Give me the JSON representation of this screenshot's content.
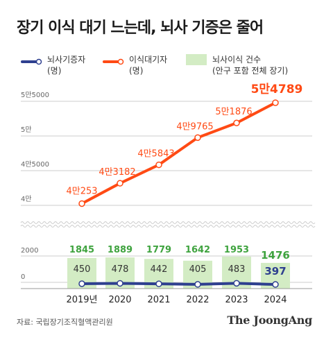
{
  "title": "장기 이식 대기 느는데, 뇌사 기증은 줄어",
  "legend": {
    "donors": "뇌사기증자\n(명)",
    "waiting": "이식대기자\n(명)",
    "transplants": "뇌사이식 건수\n(안구 포함 전체 장기)"
  },
  "source": "자료: 국립장기조직혈액관리원",
  "logo": "The JoongAng",
  "colors": {
    "waiting": "#ff4a14",
    "donors": "#2e3f8f",
    "transplants": "#d3ecc4",
    "transplant_label": "#3fa33f",
    "axis": "#cccccc"
  },
  "chart_data": [
    {
      "type": "line",
      "name": "이식대기자",
      "x": [
        "2019년",
        "2020",
        "2021",
        "2022",
        "2023",
        "2024"
      ],
      "values": [
        40253,
        43182,
        45843,
        49765,
        51876,
        54789
      ],
      "labels": [
        "4만253",
        "4만3182",
        "4만5843",
        "4만9765",
        "5만1876",
        "5만4789"
      ],
      "yticks": [
        40000,
        45000,
        50000,
        55000
      ],
      "ytick_labels": [
        "4만",
        "4만5000",
        "5만",
        "5만5000"
      ],
      "ylim": [
        40000,
        55000
      ],
      "grid": true
    },
    {
      "type": "bar",
      "name": "뇌사이식 건수",
      "categories": [
        "2019년",
        "2020",
        "2021",
        "2022",
        "2023",
        "2024"
      ],
      "values": [
        1845,
        1889,
        1779,
        1642,
        1953,
        1476
      ],
      "yticks": [
        0,
        2000
      ],
      "ytick_labels": [
        "0",
        "2000"
      ]
    },
    {
      "type": "line",
      "name": "뇌사기증자",
      "x": [
        "2019년",
        "2020",
        "2021",
        "2022",
        "2023",
        "2024"
      ],
      "values": [
        450,
        478,
        442,
        405,
        483,
        397
      ]
    }
  ]
}
